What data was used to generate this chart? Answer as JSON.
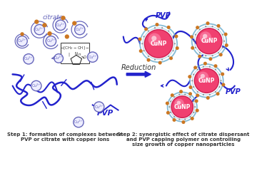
{
  "background_color": "#ffffff",
  "step1_caption": "Step 1: formation of complexes between\nPVP or citrate with copper ions",
  "step2_caption": "Step 2: synergistic effect of citrate dispersant\nand PVP capping polymer on controlling\nsize growth of copper nanoparticles",
  "reduction_label": "Reduction",
  "citrate_label": "citrate",
  "pvp_label_left": "PVP",
  "pvp_label_right1": "PVP",
  "pvp_label_right2": "PVP",
  "cunp_label": "CuNP",
  "cu_ion_color": "#6666bb",
  "pvp_color": "#2222cc",
  "citrate_dot_color": "#cc7722",
  "cunp_fill_color": "#f04070",
  "cunp_edge_color": "#cc2050",
  "cunp_ring_color": "#66aacc",
  "reduction_arrow_color": "#2222cc",
  "text_color": "#333333",
  "label_color_blue": "#2222cc",
  "cu_label_color": "#6666bb",
  "pvp_chain_color": "#2222cc",
  "small_dot_color": "#888888"
}
